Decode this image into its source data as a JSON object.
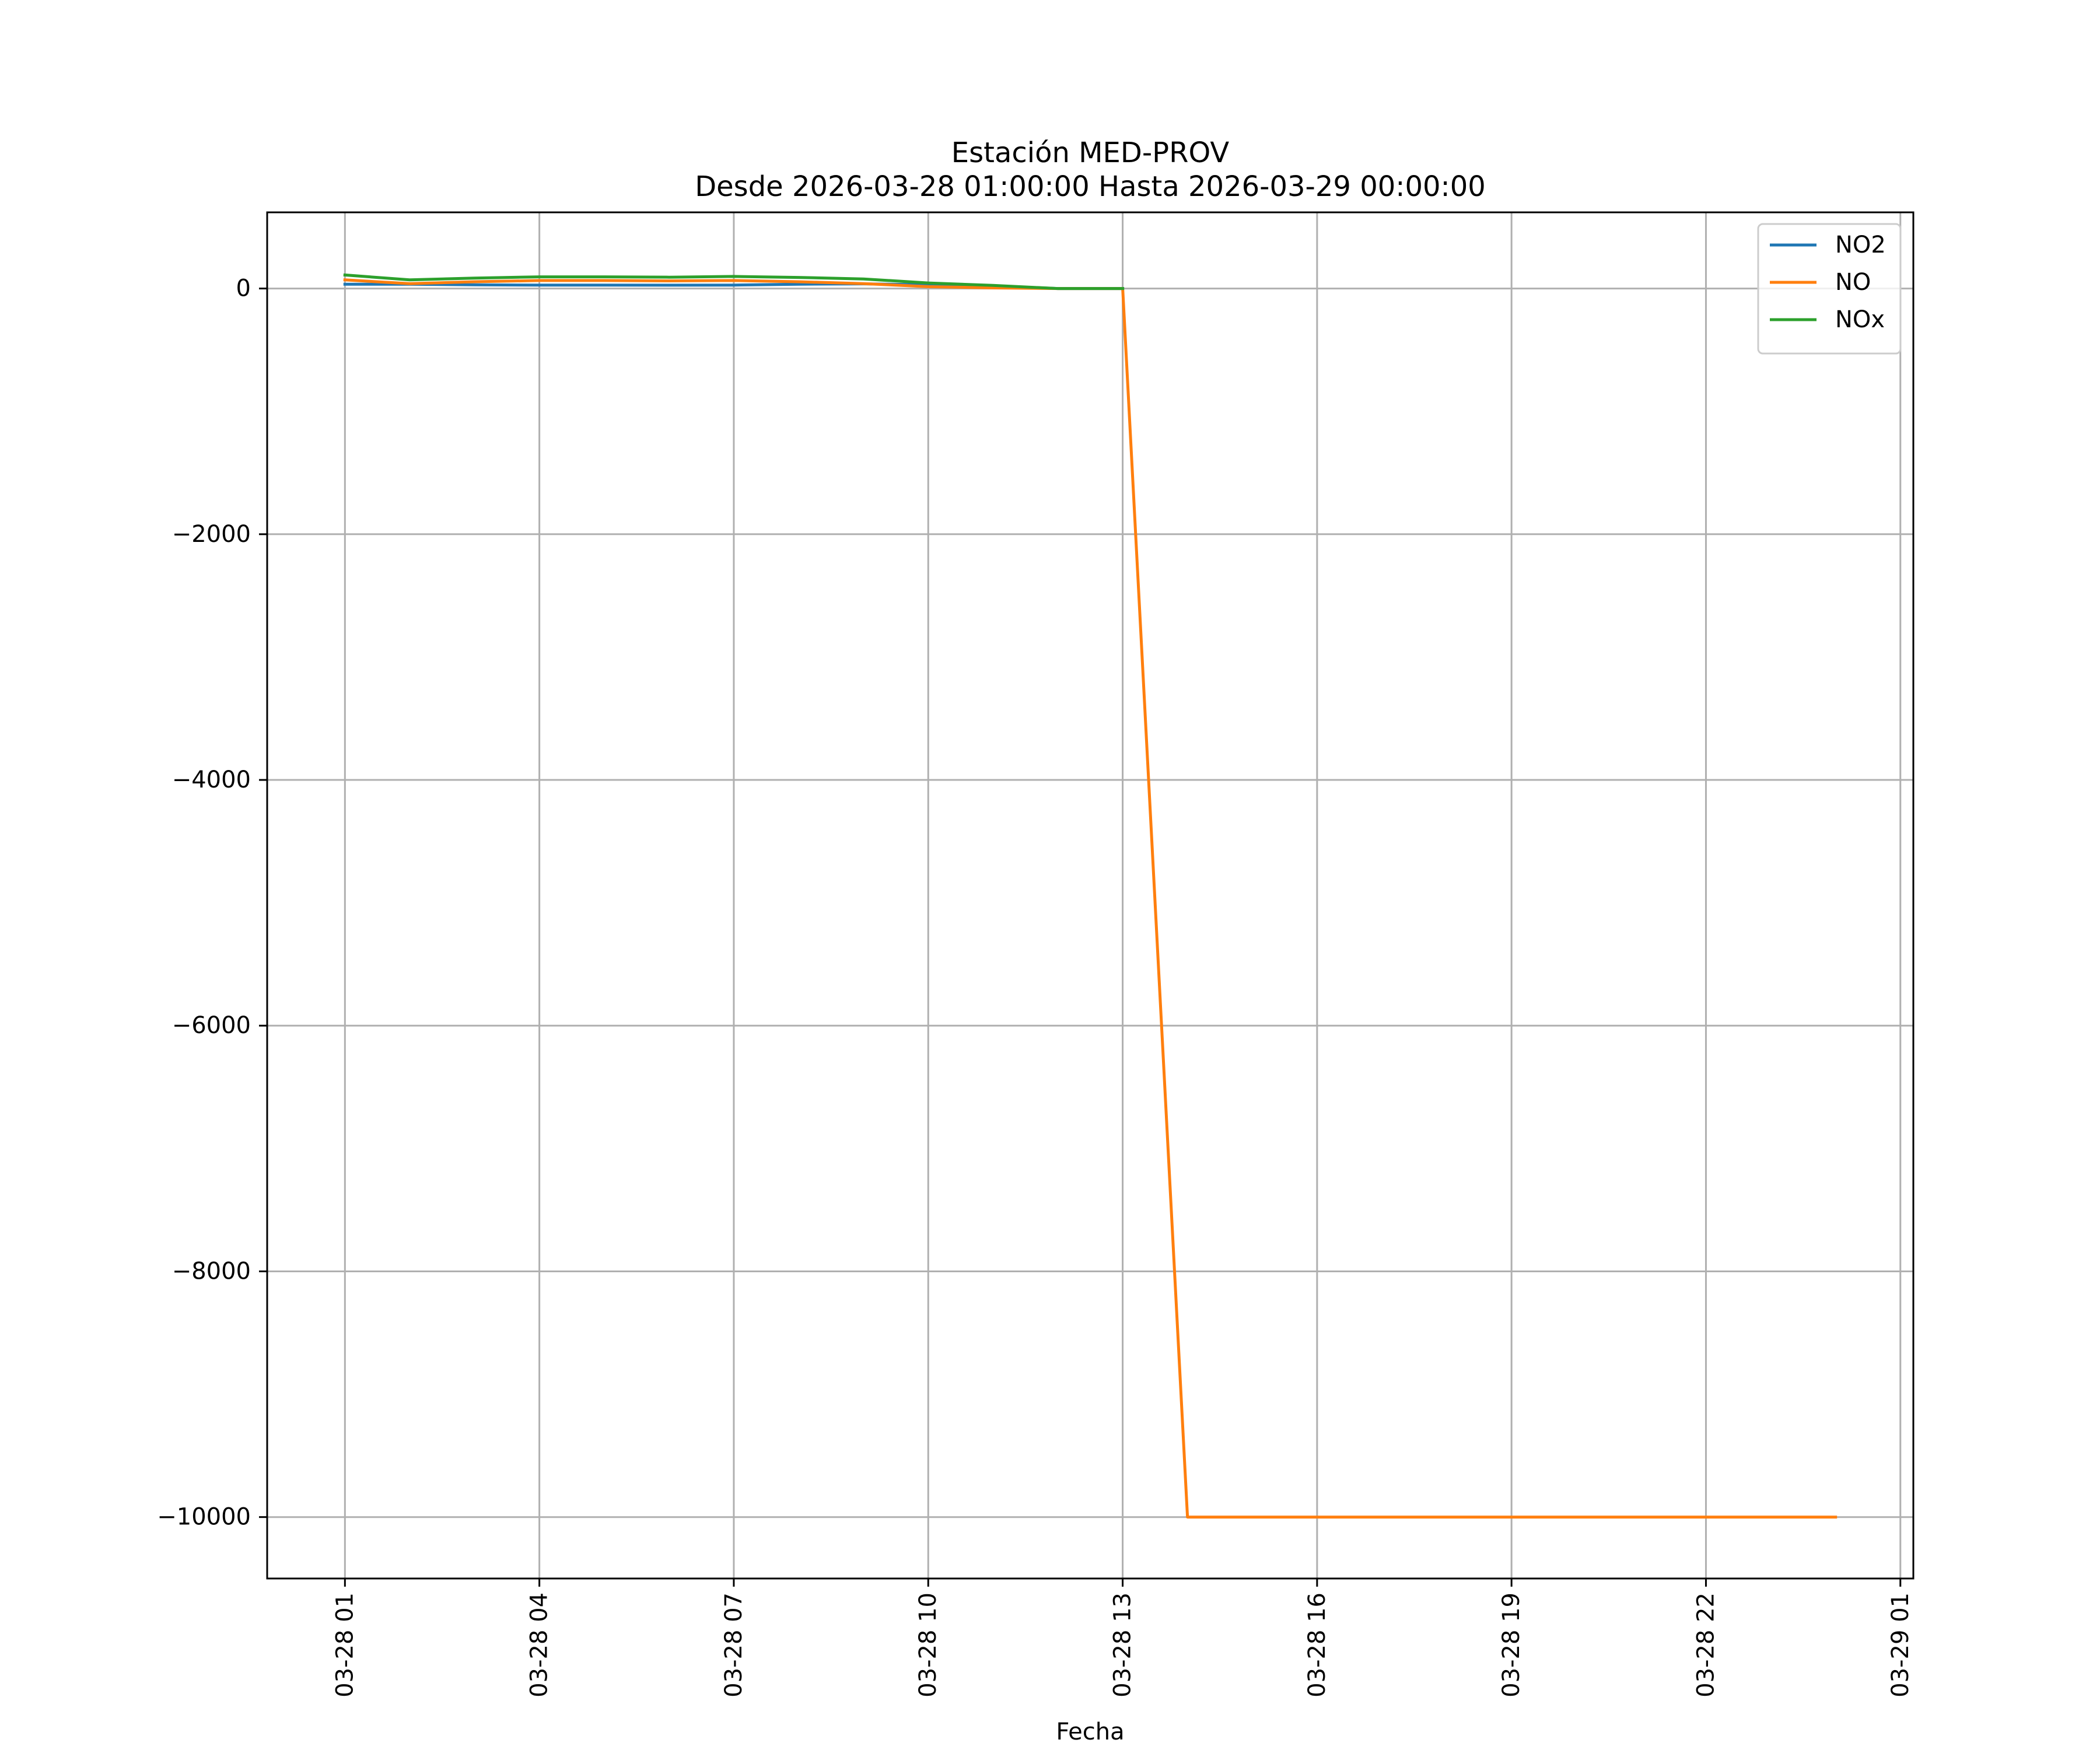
{
  "chart_data": {
    "type": "line",
    "title": "Estación MED-PROV",
    "subtitle": "Desde 2026-03-28 01:00:00 Hasta 2026-03-29 00:00:00",
    "xlabel": "Fecha",
    "ylabel": "",
    "x_range": [
      "2026-03-27 23:48",
      "2026-03-29 01:12"
    ],
    "ylim": [
      -10500,
      620
    ],
    "x_ticks": [
      {
        "value": "2026-03-28 01:00",
        "label": "03-28 01"
      },
      {
        "value": "2026-03-28 04:00",
        "label": "03-28 04"
      },
      {
        "value": "2026-03-28 07:00",
        "label": "03-28 07"
      },
      {
        "value": "2026-03-28 10:00",
        "label": "03-28 10"
      },
      {
        "value": "2026-03-28 13:00",
        "label": "03-28 13"
      },
      {
        "value": "2026-03-28 16:00",
        "label": "03-28 16"
      },
      {
        "value": "2026-03-28 19:00",
        "label": "03-28 19"
      },
      {
        "value": "2026-03-28 22:00",
        "label": "03-28 22"
      },
      {
        "value": "2026-03-29 01:00",
        "label": "03-29 01"
      }
    ],
    "y_ticks": [
      {
        "value": 0,
        "label": "0"
      },
      {
        "value": -2000,
        "label": "−2000"
      },
      {
        "value": -4000,
        "label": "−4000"
      },
      {
        "value": -6000,
        "label": "−6000"
      },
      {
        "value": -8000,
        "label": "−8000"
      },
      {
        "value": -10000,
        "label": "−10000"
      }
    ],
    "grid": true,
    "legend_position": "top-right",
    "series": [
      {
        "name": "NO2",
        "color": "#1f77b4",
        "points": [
          [
            "2026-03-28 01:00",
            35
          ],
          [
            "2026-03-28 02:00",
            35
          ],
          [
            "2026-03-28 03:00",
            30
          ],
          [
            "2026-03-28 04:00",
            28
          ],
          [
            "2026-03-28 05:00",
            28
          ],
          [
            "2026-03-28 06:00",
            27
          ],
          [
            "2026-03-28 07:00",
            28
          ],
          [
            "2026-03-28 08:00",
            35
          ],
          [
            "2026-03-28 09:00",
            38
          ],
          [
            "2026-03-28 10:00",
            30
          ],
          [
            "2026-03-28 11:00",
            20
          ],
          [
            "2026-03-28 12:00",
            0
          ],
          [
            "2026-03-28 13:00",
            0
          ]
        ]
      },
      {
        "name": "NO",
        "color": "#ff7f0e",
        "points": [
          [
            "2026-03-28 01:00",
            70
          ],
          [
            "2026-03-28 02:00",
            40
          ],
          [
            "2026-03-28 03:00",
            55
          ],
          [
            "2026-03-28 04:00",
            65
          ],
          [
            "2026-03-28 05:00",
            65
          ],
          [
            "2026-03-28 06:00",
            62
          ],
          [
            "2026-03-28 07:00",
            65
          ],
          [
            "2026-03-28 08:00",
            55
          ],
          [
            "2026-03-28 09:00",
            40
          ],
          [
            "2026-03-28 10:00",
            15
          ],
          [
            "2026-03-28 11:00",
            5
          ],
          [
            "2026-03-28 12:00",
            0
          ],
          [
            "2026-03-28 13:00",
            0
          ],
          [
            "2026-03-28 14:00",
            -10000
          ],
          [
            "2026-03-28 15:00",
            -10000
          ],
          [
            "2026-03-28 16:00",
            -10000
          ],
          [
            "2026-03-28 17:00",
            -10000
          ],
          [
            "2026-03-28 18:00",
            -10000
          ],
          [
            "2026-03-28 19:00",
            -10000
          ],
          [
            "2026-03-28 20:00",
            -10000
          ],
          [
            "2026-03-28 21:00",
            -10000
          ],
          [
            "2026-03-28 22:00",
            -10000
          ],
          [
            "2026-03-28 23:00",
            -10000
          ],
          [
            "2026-03-29 00:00",
            -10000
          ]
        ]
      },
      {
        "name": "NOx",
        "color": "#2ca02c",
        "points": [
          [
            "2026-03-28 01:00",
            110
          ],
          [
            "2026-03-28 02:00",
            70
          ],
          [
            "2026-03-28 03:00",
            85
          ],
          [
            "2026-03-28 04:00",
            95
          ],
          [
            "2026-03-28 05:00",
            95
          ],
          [
            "2026-03-28 06:00",
            92
          ],
          [
            "2026-03-28 07:00",
            98
          ],
          [
            "2026-03-28 08:00",
            90
          ],
          [
            "2026-03-28 09:00",
            78
          ],
          [
            "2026-03-28 10:00",
            45
          ],
          [
            "2026-03-28 11:00",
            25
          ],
          [
            "2026-03-28 12:00",
            0
          ],
          [
            "2026-03-28 13:00",
            0
          ]
        ]
      }
    ]
  }
}
